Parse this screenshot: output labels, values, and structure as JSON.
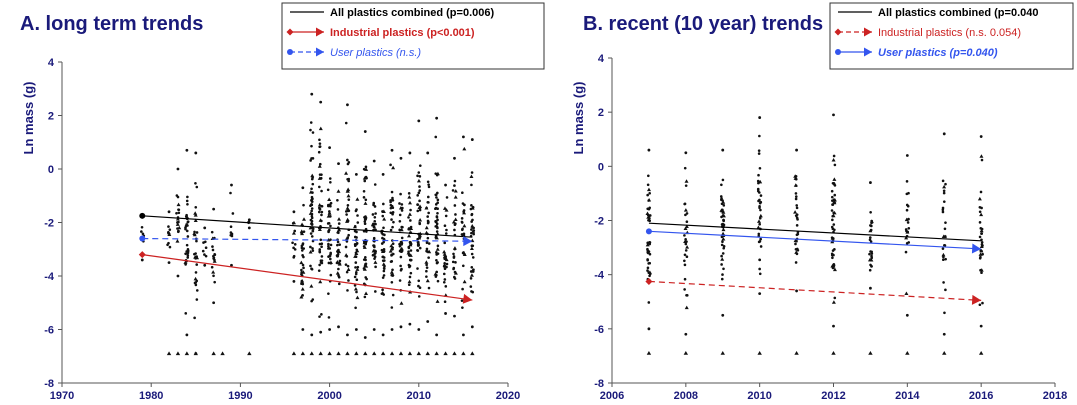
{
  "chart_data": [
    {
      "type": "scatter",
      "title": "A.  long term trends",
      "ylabel": "Ln mass (g)",
      "xlabel": "",
      "xlim": [
        1970,
        2020
      ],
      "ylim": [
        -8,
        4
      ],
      "xticks": [
        "1970",
        "1980",
        "1990",
        "2000",
        "2010",
        "2020"
      ],
      "yticks": [
        "4",
        "2",
        "0",
        "-2",
        "-4",
        "-6",
        "-8"
      ],
      "grid": false,
      "legend_position": "top-right",
      "legend": [
        {
          "label": "All plastics combined (p=0.006)",
          "color": "#000000",
          "style": "solid",
          "marker": "none",
          "bold": true,
          "italic": false
        },
        {
          "label": "Industrial plastics (p<0.001)",
          "color": "#cc2222",
          "style": "solid",
          "marker": "diamond",
          "bold": true,
          "italic": false
        },
        {
          "label": "User plastics (n.s.)",
          "color": "#3355ee",
          "style": "dashed",
          "marker": "circle",
          "bold": false,
          "italic": true
        }
      ],
      "series": [
        {
          "name": "All plastics combined (p=0.006)",
          "color": "#000000",
          "style": "solid",
          "x": [
            1979,
            2016
          ],
          "y": [
            -1.75,
            -2.55
          ],
          "start_marker": "circle",
          "end_marker": "none"
        },
        {
          "name": "Industrial plastics (p<0.001)",
          "color": "#cc2222",
          "style": "solid",
          "x": [
            1979,
            2016
          ],
          "y": [
            -3.2,
            -4.9
          ],
          "start_marker": "diamond",
          "end_marker": "arrow"
        },
        {
          "name": "User plastics (n.s.)",
          "color": "#3355ee",
          "style": "dashed",
          "x": [
            1979,
            2016
          ],
          "y": [
            -2.6,
            -2.7
          ],
          "start_marker": "circle",
          "end_marker": "arrow"
        }
      ],
      "scatter_years": [
        {
          "x": 1979,
          "low": -3.4,
          "high": -1.7,
          "n": 6
        },
        {
          "x": 1982,
          "low": -3.5,
          "high": -1.6,
          "n": 8
        },
        {
          "x": 1983,
          "low": -4.0,
          "high": 0.0,
          "n": 18
        },
        {
          "x": 1984,
          "low": -6.2,
          "high": 0.7,
          "n": 30
        },
        {
          "x": 1985,
          "low": -6.9,
          "high": 0.6,
          "n": 28
        },
        {
          "x": 1986,
          "low": -3.6,
          "high": -2.2,
          "n": 6
        },
        {
          "x": 1987,
          "low": -5.0,
          "high": -1.5,
          "n": 16
        },
        {
          "x": 1989,
          "low": -3.6,
          "high": -0.6,
          "n": 8
        },
        {
          "x": 1991,
          "low": -2.2,
          "high": -1.9,
          "n": 3
        },
        {
          "x": 1996,
          "low": -4.2,
          "high": -1.6,
          "n": 10
        },
        {
          "x": 1997,
          "low": -6.0,
          "high": -0.7,
          "n": 32
        },
        {
          "x": 1998,
          "low": -6.2,
          "high": 2.8,
          "n": 52
        },
        {
          "x": 1999,
          "low": -6.1,
          "high": 2.5,
          "n": 46
        },
        {
          "x": 2000,
          "low": -6.0,
          "high": 0.8,
          "n": 40
        },
        {
          "x": 2001,
          "low": -5.9,
          "high": 0.2,
          "n": 34
        },
        {
          "x": 2002,
          "low": -6.2,
          "high": 2.4,
          "n": 40
        },
        {
          "x": 2003,
          "low": -6.0,
          "high": -0.2,
          "n": 36
        },
        {
          "x": 2004,
          "low": -6.3,
          "high": 1.4,
          "n": 46
        },
        {
          "x": 2005,
          "low": -6.0,
          "high": 0.3,
          "n": 38
        },
        {
          "x": 2006,
          "low": -6.2,
          "high": -0.2,
          "n": 36
        },
        {
          "x": 2007,
          "low": -6.0,
          "high": 0.7,
          "n": 40
        },
        {
          "x": 2008,
          "low": -5.9,
          "high": 0.4,
          "n": 34
        },
        {
          "x": 2009,
          "low": -5.8,
          "high": 0.6,
          "n": 38
        },
        {
          "x": 2010,
          "low": -6.0,
          "high": 1.8,
          "n": 40
        },
        {
          "x": 2011,
          "low": -5.7,
          "high": 0.6,
          "n": 32
        },
        {
          "x": 2012,
          "low": -6.2,
          "high": 1.9,
          "n": 46
        },
        {
          "x": 2013,
          "low": -5.4,
          "high": -0.6,
          "n": 28
        },
        {
          "x": 2014,
          "low": -5.5,
          "high": 0.4,
          "n": 26
        },
        {
          "x": 2015,
          "low": -6.2,
          "high": 1.2,
          "n": 30
        },
        {
          "x": 2016,
          "low": -5.9,
          "high": 1.1,
          "n": 38
        }
      ],
      "floor_points": {
        "y": -6.9,
        "x": [
          1982,
          1983,
          1984,
          1985,
          1987,
          1988,
          1991,
          1996,
          1997,
          1998,
          1999,
          2000,
          2001,
          2002,
          2003,
          2004,
          2005,
          2006,
          2007,
          2008,
          2009,
          2010,
          2011,
          2012,
          2013,
          2014,
          2015,
          2016
        ]
      }
    },
    {
      "type": "scatter",
      "title": "B.  recent (10 year) trends",
      "ylabel": "Ln mass (g)",
      "xlabel": "",
      "xlim": [
        2006,
        2018
      ],
      "ylim": [
        -8,
        4
      ],
      "xticks": [
        "2006",
        "2008",
        "2010",
        "2012",
        "2014",
        "2016",
        "2018"
      ],
      "yticks": [
        "4",
        "2",
        "0",
        "-2",
        "-4",
        "-6",
        "-8"
      ],
      "grid": false,
      "legend_position": "top-right",
      "legend": [
        {
          "label": "All plastics combined (p=0.040",
          "color": "#000000",
          "style": "solid",
          "marker": "none",
          "bold": true,
          "italic": false
        },
        {
          "label": "Industrial plastics (n.s. 0.054)",
          "color": "#cc2222",
          "style": "dashed",
          "marker": "diamond",
          "bold": false,
          "italic": false
        },
        {
          "label": "User plastics (p=0.040)",
          "color": "#3355ee",
          "style": "solid",
          "marker": "circle",
          "bold": true,
          "italic": true
        }
      ],
      "series": [
        {
          "name": "All plastics combined (p=0.040",
          "color": "#000000",
          "style": "solid",
          "x": [
            2007,
            2016
          ],
          "y": [
            -2.1,
            -2.75
          ],
          "start_marker": "none",
          "end_marker": "none"
        },
        {
          "name": "Industrial plastics (n.s. 0.054)",
          "color": "#cc2222",
          "style": "dashed",
          "x": [
            2007,
            2016
          ],
          "y": [
            -4.25,
            -4.95
          ],
          "start_marker": "diamond",
          "end_marker": "arrow"
        },
        {
          "name": "User plastics (p=0.040)",
          "color": "#3355ee",
          "style": "solid",
          "x": [
            2007,
            2016
          ],
          "y": [
            -2.4,
            -3.05
          ],
          "start_marker": "circle",
          "end_marker": "arrow"
        }
      ],
      "scatter_years": [
        {
          "x": 2007,
          "low": -6.0,
          "high": 0.6,
          "n": 48
        },
        {
          "x": 2008,
          "low": -6.2,
          "high": 0.5,
          "n": 28
        },
        {
          "x": 2009,
          "low": -5.5,
          "high": 0.6,
          "n": 44
        },
        {
          "x": 2010,
          "low": -4.7,
          "high": 1.8,
          "n": 36
        },
        {
          "x": 2011,
          "low": -4.6,
          "high": 0.6,
          "n": 30
        },
        {
          "x": 2012,
          "low": -5.9,
          "high": 1.9,
          "n": 50
        },
        {
          "x": 2013,
          "low": -4.5,
          "high": -0.6,
          "n": 24
        },
        {
          "x": 2014,
          "low": -5.5,
          "high": 0.4,
          "n": 20
        },
        {
          "x": 2015,
          "low": -6.2,
          "high": 1.2,
          "n": 24
        },
        {
          "x": 2016,
          "low": -5.9,
          "high": 1.1,
          "n": 32
        }
      ],
      "floor_points": {
        "y": -6.9,
        "x": [
          2007,
          2008,
          2009,
          2010,
          2011,
          2012,
          2013,
          2014,
          2015,
          2016
        ]
      }
    }
  ]
}
